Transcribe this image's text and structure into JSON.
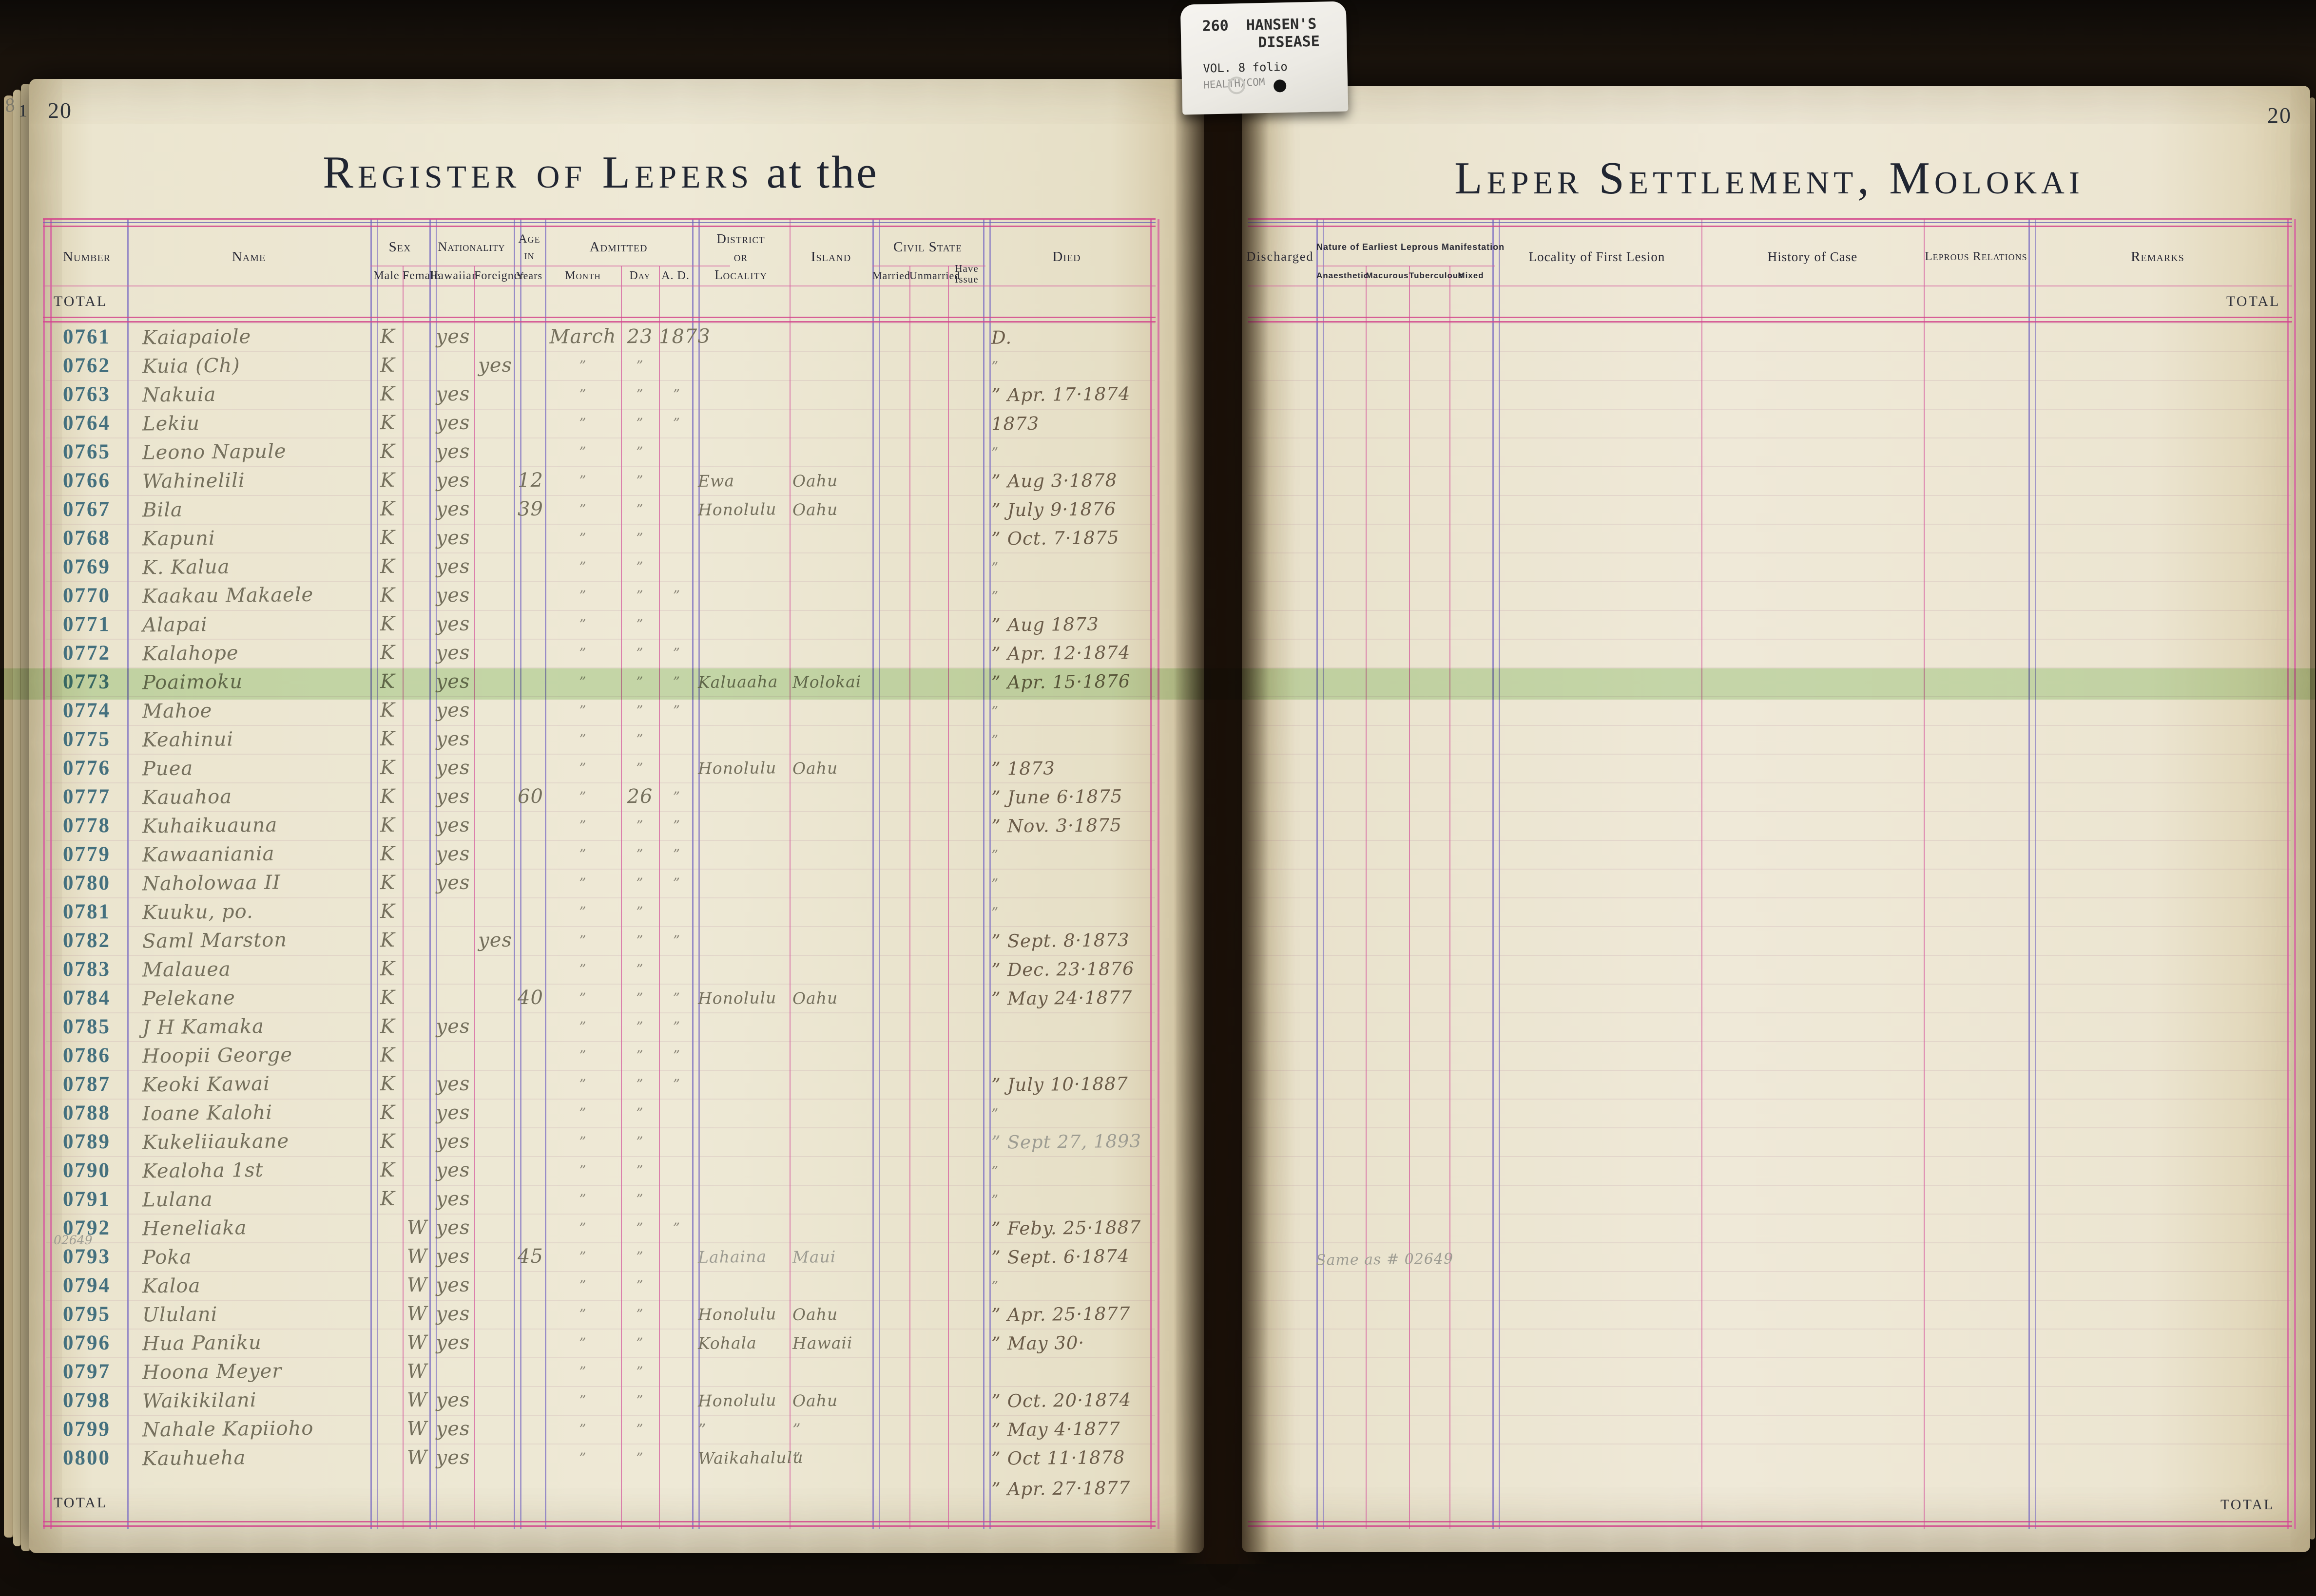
{
  "colors": {
    "background": "#1a130c",
    "page_paper": "#ece6d2",
    "rule_pink": "#d2468c",
    "rule_lavender": "#897cc4",
    "number_ink": "#44707e",
    "handwriting": "#75705d",
    "pencil": "#9d9c92",
    "highlight_green": "#a8d694"
  },
  "tab": {
    "code_line": "260  HANSEN'S",
    "disease_line": "DISEASE",
    "vol_line": "VOL. 8 folio",
    "dept_line": "HEALTH/COM"
  },
  "page_left": {
    "page_number": "20",
    "edge_number": "1",
    "edge_mark": "8",
    "title_main": "Register of Lepers",
    "title_suffix": " at the",
    "total_label_top": "TOTAL",
    "total_label_bottom": "TOTAL",
    "headers": {
      "number": "Number",
      "name": "Name",
      "sex": "Sex",
      "male": "Male",
      "female": "Female",
      "nationality": "Nationality",
      "hawaiian": "Hawaiian",
      "foreigner": "Foreigner",
      "age_in": "Age in",
      "years": "Years",
      "admitted": "Admitted",
      "month": "Month",
      "day": "Day",
      "ad": "A. D.",
      "district_l1": "District",
      "district_l2": "or",
      "district_l3": "Locality",
      "island": "Island",
      "civil_state": "Civil State",
      "married": "Married",
      "unmarried": "Unmarried",
      "have_issue": "Have Issue",
      "died": "Died"
    },
    "died_overflow": "” Apr. 27·1877",
    "rows": [
      {
        "num": "0761",
        "name": "Kaiapaiole",
        "male": "K",
        "haw": "yes",
        "month": "March",
        "day": "23",
        "ad": "1873",
        "died": "D."
      },
      {
        "num": "0762",
        "name": "Kuia (Ch)",
        "male": "K",
        "forgn": "yes",
        "month": "”",
        "day": "”",
        "died": "”"
      },
      {
        "num": "0763",
        "name": "Nakuia",
        "male": "K",
        "haw": "yes",
        "month": "”",
        "day": "”",
        "ad": "”",
        "died": "” Apr. 17·1874"
      },
      {
        "num": "0764",
        "name": "Lekiu",
        "male": "K",
        "haw": "yes",
        "month": "”",
        "day": "”",
        "ad": "”",
        "died": "1873"
      },
      {
        "num": "0765",
        "name": "Leono Napule",
        "male": "K",
        "haw": "yes",
        "month": "”",
        "day": "”",
        "died": "”"
      },
      {
        "num": "0766",
        "name": "Wahinelili",
        "male": "K",
        "haw": "yes",
        "age": "12",
        "month": "”",
        "day": "”",
        "district": "Ewa",
        "island": "Oahu",
        "died": "” Aug 3·1878"
      },
      {
        "num": "0767",
        "name": "Bila",
        "male": "K",
        "haw": "yes",
        "age": "39",
        "month": "”",
        "day": "”",
        "district": "Honolulu",
        "island": "Oahu",
        "died": "” July 9·1876"
      },
      {
        "num": "0768",
        "name": "Kapuni",
        "male": "K",
        "haw": "yes",
        "month": "”",
        "day": "”",
        "died": "” Oct. 7·1875"
      },
      {
        "num": "0769",
        "name": "K. Kalua",
        "male": "K",
        "haw": "yes",
        "month": "”",
        "day": "”",
        "died": "”"
      },
      {
        "num": "0770",
        "name": "Kaakau Makaele",
        "male": "K",
        "haw": "yes",
        "month": "”",
        "day": "”",
        "ad": "”",
        "died": "”"
      },
      {
        "num": "0771",
        "name": "Alapai",
        "male": "K",
        "haw": "yes",
        "month": "”",
        "day": "”",
        "died": "” Aug 1873"
      },
      {
        "num": "0772",
        "name": "Kalahope",
        "male": "K",
        "haw": "yes",
        "month": "”",
        "day": "”",
        "ad": "”",
        "died": "” Apr. 12·1874"
      },
      {
        "num": "0773",
        "name": "Poaimoku",
        "male": "K",
        "haw": "yes",
        "month": "”",
        "day": "”",
        "ad": "”",
        "district": "Kaluaaha",
        "island": "Molokai",
        "died": "” Apr. 15·1876"
      },
      {
        "num": "0774",
        "name": "Mahoe",
        "male": "K",
        "haw": "yes",
        "month": "”",
        "day": "”",
        "ad": "”",
        "died": "”"
      },
      {
        "num": "0775",
        "name": "Keahinui",
        "male": "K",
        "haw": "yes",
        "month": "”",
        "day": "”",
        "died": "”"
      },
      {
        "num": "0776",
        "name": "Puea",
        "male": "K",
        "haw": "yes",
        "month": "”",
        "day": "”",
        "district": "Honolulu",
        "island": "Oahu",
        "died": "” 1873"
      },
      {
        "num": "0777",
        "name": "Kauahoa",
        "male": "K",
        "haw": "yes",
        "age": "60",
        "month": "”",
        "day": "26",
        "ad": "”",
        "died": "” June 6·1875"
      },
      {
        "num": "0778",
        "name": "Kuhaikuauna",
        "male": "K",
        "haw": "yes",
        "month": "”",
        "day": "”",
        "ad": "”",
        "died": "” Nov. 3·1875"
      },
      {
        "num": "0779",
        "name": "Kawaaniania",
        "male": "K",
        "haw": "yes",
        "month": "”",
        "day": "”",
        "ad": "”",
        "died": "”"
      },
      {
        "num": "0780",
        "name": "Naholowaa II",
        "male": "K",
        "haw": "yes",
        "month": "”",
        "day": "”",
        "ad": "”",
        "died": "”"
      },
      {
        "num": "0781",
        "name": "Kuuku, po.",
        "male": "K",
        "month": "”",
        "day": "”",
        "died": "”"
      },
      {
        "num": "0782",
        "name": "Saml Marston",
        "male": "K",
        "forgn": "yes",
        "month": "”",
        "day": "”",
        "ad": "”",
        "died": "” Sept. 8·1873"
      },
      {
        "num": "0783",
        "name": "Malauea",
        "male": "K",
        "month": "”",
        "day": "”",
        "died": "” Dec. 23·1876"
      },
      {
        "num": "0784",
        "name": "Pelekane",
        "male": "K",
        "age": "40",
        "month": "”",
        "day": "”",
        "ad": "”",
        "district": "Honolulu",
        "island": "Oahu",
        "died": "” May 24·1877"
      },
      {
        "num": "0785",
        "name": "J H Kamaka",
        "male": "K",
        "haw": "yes",
        "month": "”",
        "day": "”",
        "ad": "”"
      },
      {
        "num": "0786",
        "name": "Hoopii George",
        "male": "K",
        "month": "”",
        "day": "”",
        "ad": "”"
      },
      {
        "num": "0787",
        "name": "Keoki Kawai",
        "male": "K",
        "haw": "yes",
        "month": "”",
        "day": "”",
        "ad": "”",
        "died": "” July 10·1887"
      },
      {
        "num": "0788",
        "name": "Ioane Kalohi",
        "male": "K",
        "haw": "yes",
        "month": "”",
        "day": "”",
        "died": "”"
      },
      {
        "num": "0789",
        "name": "Kukeliiaukane",
        "male": "K",
        "haw": "yes",
        "month": "”",
        "day": "”",
        "died": "” Sept 27, 1893",
        "pencil": [
          "died"
        ]
      },
      {
        "num": "0790",
        "name": "Kealoha 1st",
        "male": "K",
        "haw": "yes",
        "month": "”",
        "day": "”",
        "died": "”"
      },
      {
        "num": "0791",
        "name": "Lulana",
        "male": "K",
        "haw": "yes",
        "month": "”",
        "day": "”",
        "died": "”"
      },
      {
        "num": "0792",
        "sub": "02649",
        "name": "Heneliaka",
        "female": "W",
        "haw": "yes",
        "month": "”",
        "day": "”",
        "ad": "”",
        "died": "” Feby. 25·1887"
      },
      {
        "num": "0793",
        "name": "Poka",
        "female": "W",
        "haw": "yes",
        "age": "45",
        "month": "”",
        "day": "”",
        "district": "Lahaina",
        "island": "Maui",
        "died": "” Sept. 6·1874",
        "pencil": [
          "district",
          "island"
        ]
      },
      {
        "num": "0794",
        "name": "Kaloa",
        "female": "W",
        "haw": "yes",
        "month": "”",
        "day": "”",
        "died": "”"
      },
      {
        "num": "0795",
        "name": "Ululani",
        "female": "W",
        "haw": "yes",
        "month": "”",
        "day": "”",
        "district": "Honolulu",
        "island": "Oahu",
        "died": "” Apr. 25·1877"
      },
      {
        "num": "0796",
        "name": "Hua Paniku",
        "female": "W",
        "haw": "yes",
        "month": "”",
        "day": "”",
        "district": "Kohala",
        "island": "Hawaii",
        "died": "” May 30·"
      },
      {
        "num": "0797",
        "name": "Hoona Meyer",
        "female": "W",
        "month": "”",
        "day": "”"
      },
      {
        "num": "0798",
        "name": "Waikikilani",
        "female": "W",
        "haw": "yes",
        "month": "”",
        "day": "”",
        "district": "Honolulu",
        "island": "Oahu",
        "died": "” Oct. 20·1874"
      },
      {
        "num": "0799",
        "name": "Nahale Kapiioho",
        "female": "W",
        "haw": "yes",
        "month": "”",
        "day": "”",
        "district": "”",
        "island": "”",
        "died": "” May 4·1877"
      },
      {
        "num": "0800",
        "name": "Kauhueha",
        "female": "W",
        "haw": "yes",
        "month": "”",
        "day": "”",
        "district": "Waikahalulu",
        "island": "”",
        "died": "” Oct 11·1878"
      }
    ]
  },
  "page_right": {
    "page_number": "20",
    "title": "Leper Settlement, Molokai",
    "total_label_top": "TOTAL",
    "total_label_bottom": "TOTAL",
    "headers": {
      "discharged": "Discharged",
      "nature_group": "Nature of Earliest Leprous Manifestation",
      "anaesthetic": "Anaesthetic",
      "macurous": "Macurous",
      "tuberculous": "Tuberculous",
      "mixed": "Mixed",
      "locality_first_lesion": "Locality of First Lesion",
      "history_of_case": "History of Case",
      "leprous_relations": "Leprous Relations",
      "remarks": "Remarks"
    },
    "pencil_note": "Same as # 02649"
  }
}
